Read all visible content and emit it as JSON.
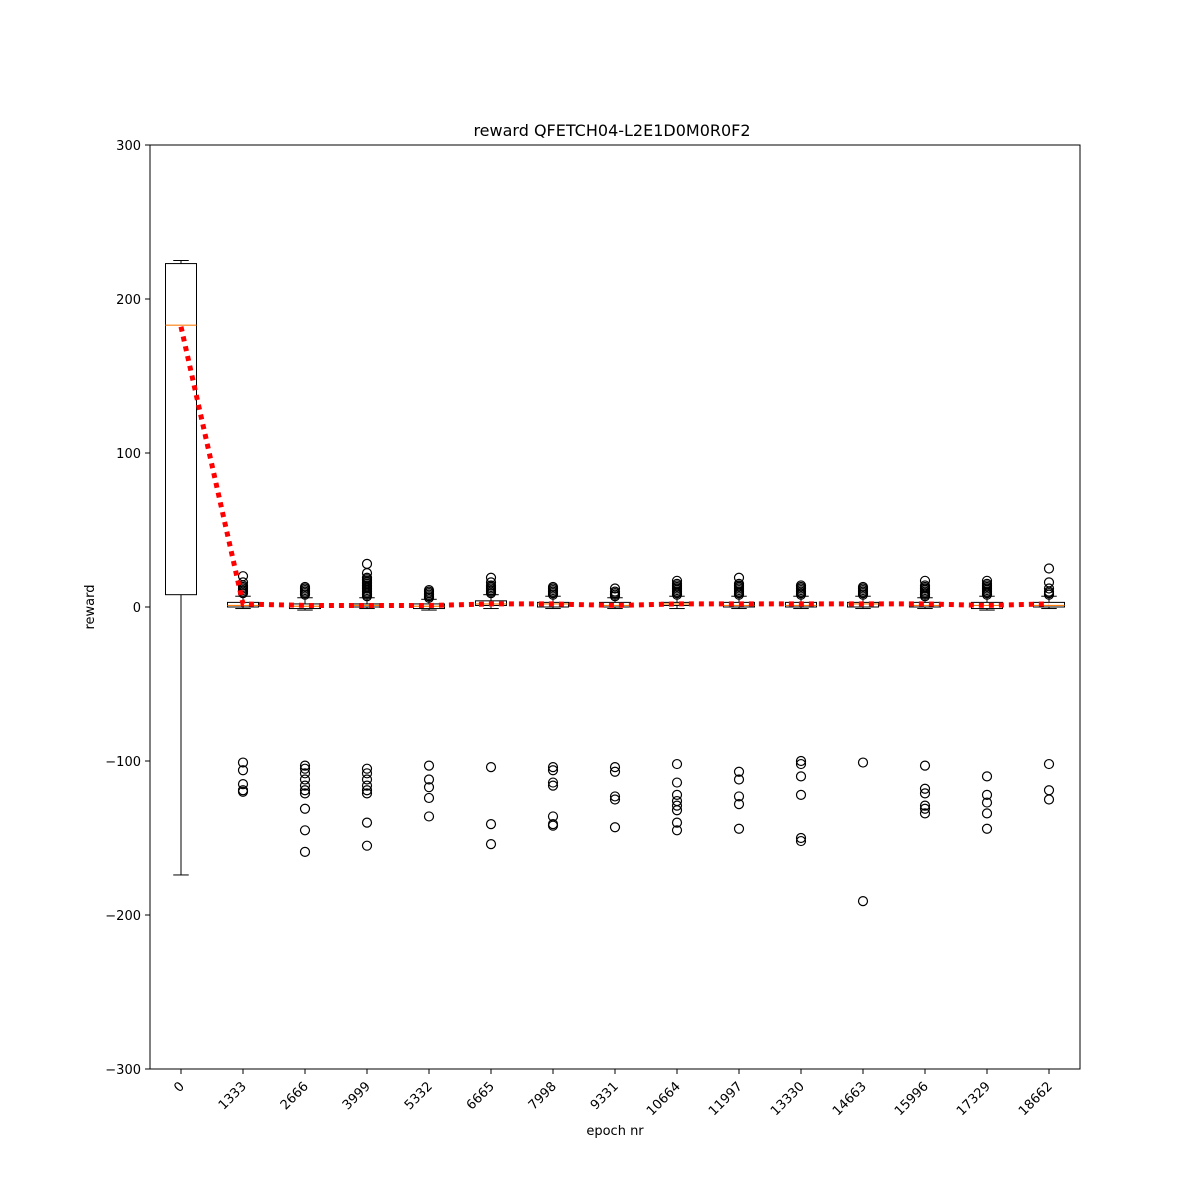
{
  "chart_data": {
    "type": "box",
    "title": "reward QFETCH04-L2E1D0M0R0F2",
    "xlabel": "epoch nr",
    "ylabel": "reward",
    "ylim": [
      -300,
      300
    ],
    "yticks": [
      300,
      200,
      100,
      0,
      -100,
      -200,
      -300
    ],
    "ytick_labels": [
      "300",
      "200",
      "100",
      "0",
      "−100",
      "−200",
      "−300"
    ],
    "grid": false,
    "colors": {
      "box": "#000000",
      "median": "#ff7f0e",
      "trend": "#ff0000",
      "outlier": "#000000"
    },
    "categories": [
      "0",
      "1333",
      "2666",
      "3999",
      "5332",
      "6665",
      "7998",
      "9331",
      "10664",
      "11997",
      "13330",
      "14663",
      "15996",
      "17329",
      "18662"
    ],
    "boxes": [
      {
        "q1": 8,
        "median": 183,
        "q3": 223,
        "whislo": -174,
        "whishi": 225,
        "fliers_high": [],
        "fliers_low": []
      },
      {
        "q1": 0,
        "median": 1,
        "q3": 3,
        "whislo": -1,
        "whishi": 7,
        "fliers_high": [
          9,
          10,
          11,
          12,
          13,
          14,
          16,
          20
        ],
        "fliers_low": [
          -101,
          -106,
          -115,
          -119,
          -120
        ]
      },
      {
        "q1": -1,
        "median": 0.5,
        "q3": 2,
        "whislo": -2,
        "whishi": 6,
        "fliers_high": [
          8,
          9,
          10,
          11,
          12,
          13
        ],
        "fliers_low": [
          -103,
          -105,
          -108,
          -112,
          -116,
          -119,
          -121,
          -131,
          -145,
          -159
        ]
      },
      {
        "q1": 0,
        "median": 1,
        "q3": 2,
        "whislo": -1,
        "whishi": 6,
        "fliers_high": [
          7,
          8,
          9,
          10,
          11,
          12,
          13,
          14,
          15,
          16,
          17,
          18,
          19,
          22,
          28
        ],
        "fliers_low": [
          -105,
          -108,
          -112,
          -116,
          -119,
          -121,
          -140,
          -155
        ]
      },
      {
        "q1": -1,
        "median": 0.5,
        "q3": 2,
        "whislo": -2,
        "whishi": 5,
        "fliers_high": [
          6,
          7,
          8,
          9,
          10,
          11
        ],
        "fliers_low": [
          -103,
          -112,
          -117,
          -124,
          -136
        ]
      },
      {
        "q1": 1,
        "median": 2,
        "q3": 4,
        "whislo": -1,
        "whishi": 8,
        "fliers_high": [
          9,
          10,
          11,
          12,
          13,
          14,
          16,
          19
        ],
        "fliers_low": [
          -104,
          -141,
          -154
        ]
      },
      {
        "q1": 0,
        "median": 2,
        "q3": 3,
        "whislo": -1,
        "whishi": 7,
        "fliers_high": [
          8,
          9,
          10,
          11,
          12,
          13
        ],
        "fliers_low": [
          -104,
          -106,
          -114,
          -116,
          -136,
          -141,
          -142
        ]
      },
      {
        "q1": 0,
        "median": 1,
        "q3": 3,
        "whislo": -1,
        "whishi": 6,
        "fliers_high": [
          7,
          8,
          9,
          10,
          12
        ],
        "fliers_low": [
          -104,
          -107,
          -123,
          -125,
          -143
        ]
      },
      {
        "q1": 1,
        "median": 2,
        "q3": 3,
        "whislo": -1,
        "whishi": 7,
        "fliers_high": [
          8,
          9,
          10,
          11,
          12,
          13,
          14,
          15,
          17
        ],
        "fliers_low": [
          -102,
          -114,
          -122,
          -126,
          -129,
          -132,
          -140,
          -145
        ]
      },
      {
        "q1": 0,
        "median": 1,
        "q3": 3,
        "whislo": -1,
        "whishi": 7,
        "fliers_high": [
          8,
          9,
          10,
          11,
          12,
          13,
          14,
          15,
          19
        ],
        "fliers_low": [
          -107,
          -112,
          -123,
          -128,
          -144
        ]
      },
      {
        "q1": 0,
        "median": 1,
        "q3": 3,
        "whislo": -1,
        "whishi": 7,
        "fliers_high": [
          8,
          9,
          10,
          11,
          12,
          13,
          14
        ],
        "fliers_low": [
          -100,
          -102,
          -110,
          -122,
          -150,
          -152
        ]
      },
      {
        "q1": 0,
        "median": 2,
        "q3": 3,
        "whislo": -1,
        "whishi": 7,
        "fliers_high": [
          8,
          9,
          10,
          11,
          12,
          13
        ],
        "fliers_low": [
          -101,
          -191
        ]
      },
      {
        "q1": 0,
        "median": 1,
        "q3": 3,
        "whislo": -1,
        "whishi": 6,
        "fliers_high": [
          7,
          8,
          9,
          10,
          11,
          12,
          13,
          14,
          17
        ],
        "fliers_low": [
          -103,
          -118,
          -121,
          -129,
          -131,
          -134
        ]
      },
      {
        "q1": -1,
        "median": 1,
        "q3": 3,
        "whislo": -2,
        "whishi": 7,
        "fliers_high": [
          8,
          9,
          10,
          11,
          12,
          13,
          14,
          15,
          17
        ],
        "fliers_low": [
          -110,
          -122,
          -127,
          -134,
          -144
        ]
      },
      {
        "q1": 0,
        "median": 1,
        "q3": 3,
        "whislo": -1,
        "whishi": 7,
        "fliers_high": [
          8,
          9,
          10,
          12,
          16,
          25
        ],
        "fliers_low": [
          -102,
          -119,
          -125
        ]
      }
    ],
    "trend": {
      "name": "",
      "style": "dotted",
      "values": [
        182,
        2,
        1,
        1,
        1,
        2,
        2,
        1,
        2,
        2,
        2,
        2,
        2,
        1,
        2
      ]
    }
  }
}
